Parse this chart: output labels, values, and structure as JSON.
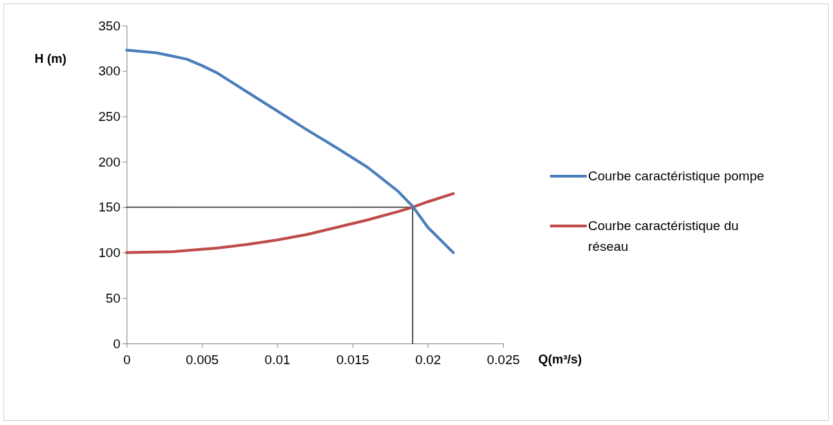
{
  "chart_data": {
    "type": "line",
    "xlabel": "Q(m³/s)",
    "ylabel": "H (m)",
    "xlim": [
      0,
      0.025
    ],
    "xticks": [
      0,
      0.005,
      0.01,
      0.015,
      0.02,
      0.025
    ],
    "ylim": [
      0,
      350
    ],
    "yticks": [
      0,
      50,
      100,
      150,
      200,
      250,
      300,
      350
    ],
    "grid": false,
    "legend": "right",
    "marker": "none",
    "line_style": "solid",
    "series": [
      {
        "name": "Courbe caractéristique pompe",
        "color": "#4a7ebb",
        "x": [
          0,
          0.002,
          0.004,
          0.005,
          0.006,
          0.008,
          0.01,
          0.012,
          0.014,
          0.016,
          0.018,
          0.019,
          0.02,
          0.0217
        ],
        "values": [
          323,
          320,
          313,
          306,
          298,
          277,
          256,
          235,
          215,
          194,
          168,
          151,
          128,
          100
        ]
      },
      {
        "name": "Courbe caractéristique du réseau",
        "color": "#be4b48",
        "x": [
          0,
          0.003,
          0.006,
          0.008,
          0.01,
          0.012,
          0.014,
          0.016,
          0.018,
          0.019,
          0.02,
          0.0217
        ],
        "values": [
          100,
          101,
          105,
          109,
          114,
          120,
          128,
          136,
          145,
          150,
          156,
          165
        ]
      },
      {
        "color": "#000000",
        "x": [
          0,
          0.019
        ],
        "values": [
          150,
          150
        ]
      },
      {
        "color": "#000000",
        "x": [
          0.019,
          0.019
        ],
        "values": [
          0,
          150
        ]
      }
    ]
  }
}
